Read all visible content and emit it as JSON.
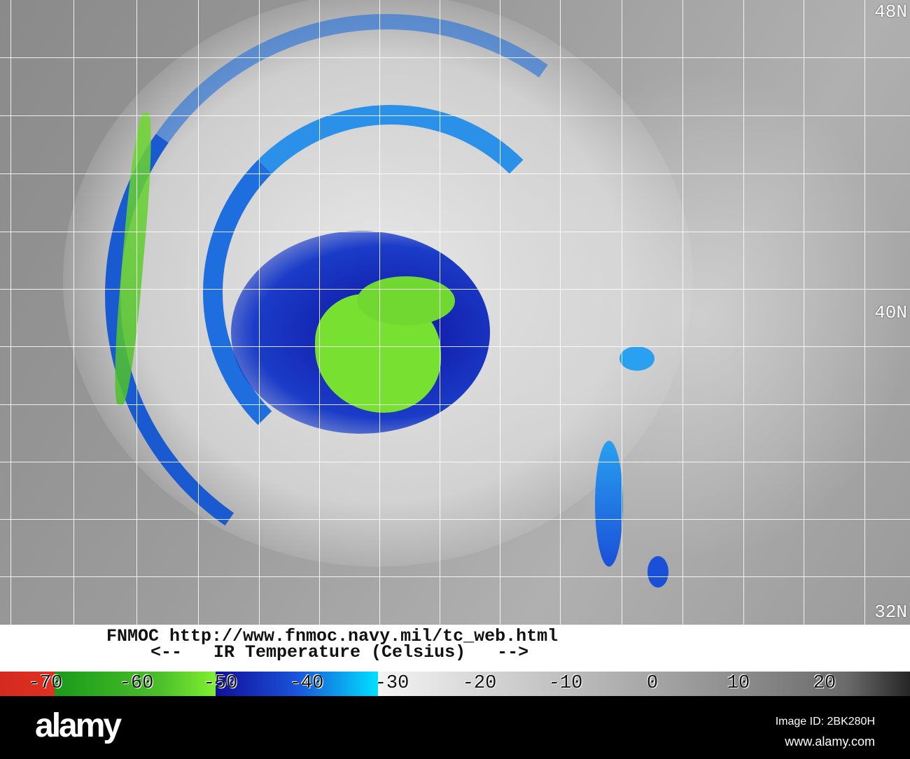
{
  "map": {
    "lat_labels": [
      "48N",
      "40N",
      "32N"
    ]
  },
  "caption": {
    "line1": "FNMOC http://www.fnmoc.navy.mil/tc_web.html",
    "line2": "<--   IR Temperature (Celsius)   -->"
  },
  "colorbar": {
    "ticks": [
      "-70",
      "-60",
      "-50",
      "-40",
      "-30",
      "-20",
      "-10",
      "0",
      "10",
      "20"
    ],
    "colors": {
      "red": "#e03020",
      "green": "#4cc02a",
      "blue": "#1a50d8",
      "cyan": "#00e0ff",
      "gray": "#8c8c8c"
    }
  },
  "watermark": {
    "logo": "alamy",
    "image_id": "Image ID: 2BK280H",
    "site": "www.alamy.com"
  }
}
